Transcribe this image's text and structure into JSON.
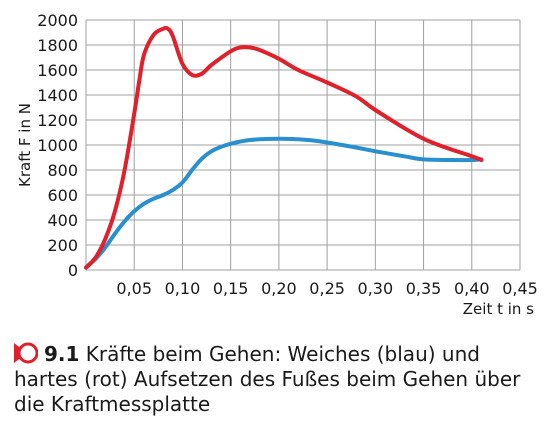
{
  "chart_data": {
    "type": "line",
    "xlabel": "Zeit t in s",
    "ylabel": "Kraft F in N",
    "xlim": [
      0,
      0.45
    ],
    "ylim": [
      0,
      2000
    ],
    "x_ticks": [
      0.05,
      0.1,
      0.15,
      0.2,
      0.25,
      0.3,
      0.35,
      0.4,
      0.45
    ],
    "x_tick_labels": [
      "0,05",
      "0,10",
      "0,15",
      "0,20",
      "0,25",
      "0,30",
      "0,35",
      "0,40",
      "0,45"
    ],
    "y_ticks": [
      0,
      200,
      400,
      600,
      800,
      1000,
      1200,
      1400,
      1600,
      1800,
      2000
    ],
    "grid": true,
    "series": [
      {
        "name": "Weiches Aufsetzen",
        "color": "#2a8fcf",
        "x": [
          0,
          0.01,
          0.02,
          0.03,
          0.04,
          0.05,
          0.06,
          0.07,
          0.08,
          0.09,
          0.1,
          0.11,
          0.12,
          0.13,
          0.14,
          0.15,
          0.17,
          0.2,
          0.23,
          0.25,
          0.28,
          0.3,
          0.33,
          0.35,
          0.38,
          0.4,
          0.41
        ],
        "values": [
          20,
          90,
          180,
          290,
          390,
          470,
          530,
          570,
          600,
          640,
          700,
          800,
          890,
          950,
          985,
          1010,
          1040,
          1050,
          1040,
          1020,
          980,
          950,
          910,
          885,
          880,
          880,
          885
        ]
      },
      {
        "name": "Hartes Aufsetzen",
        "color": "#e0202a",
        "x": [
          0,
          0.01,
          0.02,
          0.03,
          0.04,
          0.05,
          0.055,
          0.06,
          0.07,
          0.08,
          0.085,
          0.09,
          0.1,
          0.11,
          0.12,
          0.13,
          0.15,
          0.16,
          0.17,
          0.18,
          0.2,
          0.22,
          0.25,
          0.28,
          0.3,
          0.35,
          0.4,
          0.41
        ],
        "values": [
          20,
          100,
          250,
          470,
          800,
          1250,
          1500,
          1720,
          1880,
          1930,
          1930,
          1870,
          1650,
          1560,
          1570,
          1640,
          1750,
          1780,
          1780,
          1760,
          1690,
          1600,
          1500,
          1390,
          1280,
          1050,
          910,
          880
        ]
      }
    ]
  },
  "caption": {
    "number": "9.1",
    "text": "Kräfte beim Gehen: Weiches (blau) und hartes (rot) Aufsetzen des Fußes beim Gehen über die Kraftmessplatte"
  },
  "colors": {
    "accent": "#e0202a",
    "grid": "#a0a0a0"
  }
}
